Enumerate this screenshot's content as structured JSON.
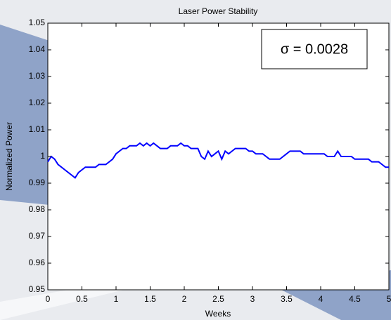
{
  "chart_data": {
    "type": "line",
    "title": "Laser Power Stability",
    "xlabel": "Weeks",
    "ylabel": "Normalized Power",
    "annotation": "σ = 0.0028",
    "color": "#0000ff",
    "grid": false,
    "xlim": [
      0,
      5
    ],
    "ylim": [
      0.95,
      1.05
    ],
    "xticks": [
      0,
      0.5,
      1,
      1.5,
      2,
      2.5,
      3,
      3.5,
      4,
      4.5,
      5
    ],
    "yticks": [
      0.95,
      0.96,
      0.97,
      0.98,
      0.99,
      1,
      1.01,
      1.02,
      1.03,
      1.04,
      1.05
    ],
    "x": [
      0,
      0.05,
      0.1,
      0.15,
      0.2,
      0.25,
      0.3,
      0.35,
      0.4,
      0.45,
      0.5,
      0.55,
      0.6,
      0.65,
      0.7,
      0.75,
      0.8,
      0.85,
      0.9,
      0.95,
      1,
      1.05,
      1.1,
      1.15,
      1.2,
      1.25,
      1.3,
      1.35,
      1.4,
      1.45,
      1.5,
      1.55,
      1.6,
      1.65,
      1.7,
      1.75,
      1.8,
      1.85,
      1.9,
      1.95,
      2,
      2.05,
      2.1,
      2.15,
      2.2,
      2.25,
      2.3,
      2.35,
      2.4,
      2.45,
      2.5,
      2.55,
      2.6,
      2.65,
      2.7,
      2.75,
      2.8,
      2.85,
      2.9,
      2.95,
      3,
      3.05,
      3.1,
      3.15,
      3.2,
      3.25,
      3.3,
      3.35,
      3.4,
      3.45,
      3.5,
      3.55,
      3.6,
      3.65,
      3.7,
      3.75,
      3.8,
      3.85,
      3.9,
      3.95,
      4,
      4.05,
      4.1,
      4.15,
      4.2,
      4.25,
      4.3,
      4.35,
      4.4,
      4.45,
      4.5,
      4.55,
      4.6,
      4.65,
      4.7,
      4.75,
      4.8,
      4.85,
      4.9,
      4.95,
      5
    ],
    "values": [
      0.998,
      1.0,
      0.999,
      0.997,
      0.996,
      0.995,
      0.994,
      0.993,
      0.992,
      0.994,
      0.995,
      0.996,
      0.996,
      0.996,
      0.996,
      0.997,
      0.997,
      0.997,
      0.998,
      0.999,
      1.001,
      1.002,
      1.003,
      1.003,
      1.004,
      1.004,
      1.004,
      1.005,
      1.004,
      1.005,
      1.004,
      1.005,
      1.004,
      1.003,
      1.003,
      1.003,
      1.004,
      1.004,
      1.004,
      1.005,
      1.004,
      1.004,
      1.003,
      1.003,
      1.003,
      1.0,
      0.999,
      1.002,
      1.0,
      1.001,
      1.002,
      0.999,
      1.002,
      1.001,
      1.002,
      1.003,
      1.003,
      1.003,
      1.003,
      1.002,
      1.002,
      1.001,
      1.001,
      1.001,
      1.0,
      0.999,
      0.999,
      0.999,
      0.999,
      1.0,
      1.001,
      1.002,
      1.002,
      1.002,
      1.002,
      1.001,
      1.001,
      1.001,
      1.001,
      1.001,
      1.001,
      1.001,
      1.0,
      1.0,
      1.0,
      1.002,
      1.0,
      1.0,
      1.0,
      1.0,
      0.999,
      0.999,
      0.999,
      0.999,
      0.999,
      0.998,
      0.998,
      0.998,
      0.997,
      0.996,
      0.996
    ]
  }
}
